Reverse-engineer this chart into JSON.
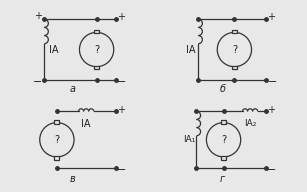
{
  "background": "#e8e8e8",
  "line_color": "#333333",
  "text_color": "#222222",
  "title_a": "а",
  "title_b": "б",
  "title_v": "в",
  "title_g": "г",
  "label_IA": "IA",
  "label_IA1": "IA₁",
  "label_IA2": "IA₂",
  "label_q": "?",
  "plus": "+",
  "minus": "−"
}
